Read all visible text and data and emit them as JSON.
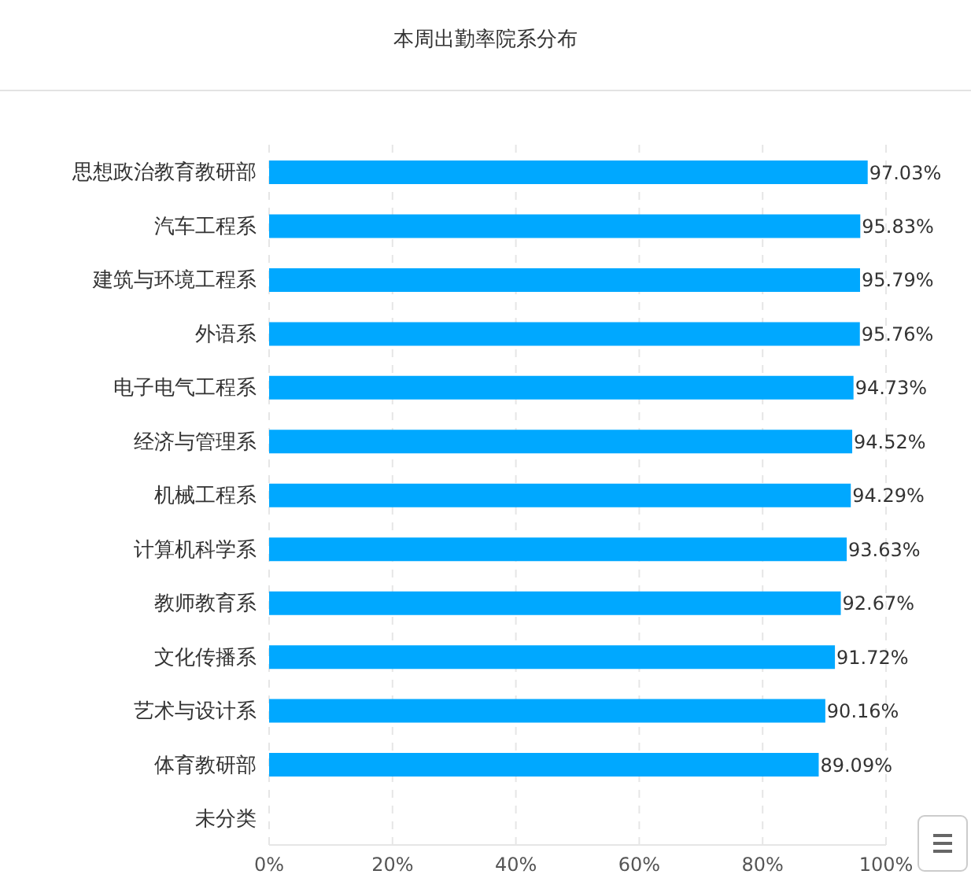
{
  "chart_data": {
    "type": "bar",
    "orientation": "horizontal",
    "title": "本周出勤率院系分布",
    "categories": [
      "思想政治教育教研部",
      "汽车工程系",
      "建筑与环境工程系",
      "外语系",
      "电子电气工程系",
      "经济与管理系",
      "机械工程系",
      "计算机科学系",
      "教师教育系",
      "文化传播系",
      "艺术与设计系",
      "体育教研部",
      "未分类"
    ],
    "values": [
      97.03,
      95.83,
      95.79,
      95.76,
      94.73,
      94.52,
      94.29,
      93.63,
      92.67,
      91.72,
      90.16,
      89.09,
      null
    ],
    "value_labels": [
      "97.03%",
      "95.83%",
      "95.79%",
      "95.76%",
      "94.73%",
      "94.52%",
      "94.29%",
      "93.63%",
      "92.67%",
      "91.72%",
      "90.16%",
      "89.09%",
      null
    ],
    "color": "#00a8ff",
    "xlim": [
      0,
      100
    ],
    "xticks": [
      {
        "value": 0,
        "label": "0%"
      },
      {
        "value": 20,
        "label": "20%"
      },
      {
        "value": 40,
        "label": "40%"
      },
      {
        "value": 60,
        "label": "60%"
      },
      {
        "value": 80,
        "label": "80%"
      },
      {
        "value": 100,
        "label": "100%"
      }
    ],
    "grid": "x",
    "legend": false
  }
}
